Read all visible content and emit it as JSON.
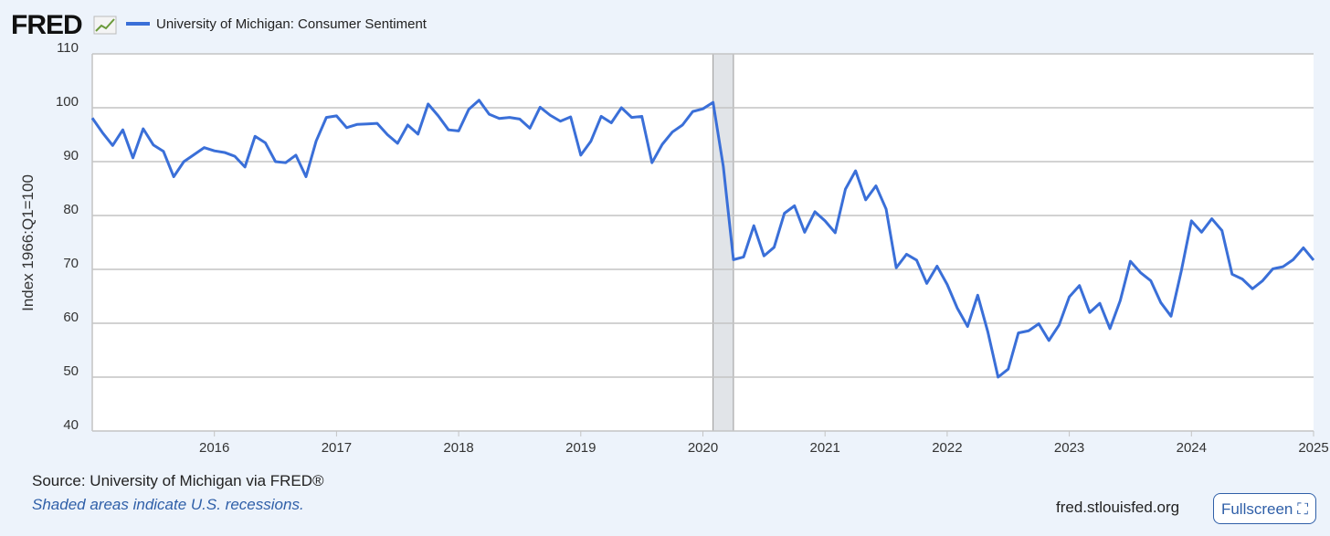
{
  "logo": "FRED",
  "source": "Source: University of Michigan via FRED®",
  "note": "Shaded areas indicate U.S. recessions.",
  "site": "fred.stlouisfed.org",
  "button": "Fullscreen",
  "chart_data": {
    "type": "line",
    "y_label": "Index 1966:Q1=100",
    "x": [
      2015.0,
      2015.083,
      2015.167,
      2015.25,
      2015.333,
      2015.417,
      2015.5,
      2015.583,
      2015.667,
      2015.75,
      2015.833,
      2015.917,
      2016.0,
      2016.083,
      2016.167,
      2016.25,
      2016.333,
      2016.417,
      2016.5,
      2016.583,
      2016.667,
      2016.75,
      2016.833,
      2016.917,
      2017.0,
      2017.083,
      2017.167,
      2017.25,
      2017.333,
      2017.417,
      2017.5,
      2017.583,
      2017.667,
      2017.75,
      2017.833,
      2017.917,
      2018.0,
      2018.083,
      2018.167,
      2018.25,
      2018.333,
      2018.417,
      2018.5,
      2018.583,
      2018.667,
      2018.75,
      2018.833,
      2018.917,
      2019.0,
      2019.083,
      2019.167,
      2019.25,
      2019.333,
      2019.417,
      2019.5,
      2019.583,
      2019.667,
      2019.75,
      2019.833,
      2019.917,
      2020.0,
      2020.083,
      2020.167,
      2020.25,
      2020.333,
      2020.417,
      2020.5,
      2020.583,
      2020.667,
      2020.75,
      2020.833,
      2020.917,
      2021.0,
      2021.083,
      2021.167,
      2021.25,
      2021.333,
      2021.417,
      2021.5,
      2021.583,
      2021.667,
      2021.75,
      2021.833,
      2021.917,
      2022.0,
      2022.083,
      2022.167,
      2022.25,
      2022.333,
      2022.417,
      2022.5,
      2022.583,
      2022.667,
      2022.75,
      2022.833,
      2022.917,
      2023.0,
      2023.083,
      2023.167,
      2023.25,
      2023.333,
      2023.417,
      2023.5,
      2023.583,
      2023.667,
      2023.75,
      2023.833,
      2023.917,
      2024.0,
      2024.083,
      2024.167,
      2024.25,
      2024.333,
      2024.417,
      2024.5,
      2024.583,
      2024.667,
      2024.75,
      2024.833,
      2024.917,
      2025.0
    ],
    "series": [
      {
        "name": "University of Michigan: Consumer Sentiment",
        "color": "#3a6fd8",
        "values": [
          98.1,
          95.4,
          93.0,
          95.9,
          90.7,
          96.1,
          93.1,
          91.9,
          87.2,
          90.0,
          91.3,
          92.6,
          92.0,
          91.7,
          91.0,
          89.0,
          94.7,
          93.5,
          90.0,
          89.8,
          91.2,
          87.2,
          93.8,
          98.2,
          98.5,
          96.3,
          96.9,
          97.0,
          97.1,
          95.0,
          93.4,
          96.8,
          95.1,
          100.7,
          98.5,
          95.9,
          95.7,
          99.7,
          101.4,
          98.8,
          98.0,
          98.2,
          97.9,
          96.2,
          100.1,
          98.6,
          97.5,
          98.3,
          91.2,
          93.8,
          98.4,
          97.2,
          100.0,
          98.2,
          98.4,
          89.8,
          93.2,
          95.5,
          96.8,
          99.3,
          99.8,
          101.0,
          89.1,
          71.8,
          72.3,
          78.1,
          72.5,
          74.1,
          80.4,
          81.8,
          76.9,
          80.7,
          79.0,
          76.8,
          84.9,
          88.3,
          82.9,
          85.5,
          81.2,
          70.3,
          72.8,
          71.7,
          67.4,
          70.6,
          67.2,
          62.8,
          59.4,
          65.2,
          58.4,
          50.0,
          51.5,
          58.2,
          58.6,
          59.9,
          56.8,
          59.7,
          64.9,
          67.0,
          62.0,
          63.7,
          59.0,
          64.2,
          71.5,
          69.4,
          67.9,
          63.8,
          61.3,
          69.7,
          79.0,
          76.9,
          79.4,
          77.2,
          69.1,
          68.2,
          66.4,
          67.9,
          70.1,
          70.5,
          71.8,
          74.0,
          71.7
        ]
      }
    ],
    "recessions": [
      [
        2020.083,
        2020.25
      ]
    ],
    "recession_color": "#e1e4e8",
    "xlim": [
      2015.0,
      2025.0
    ],
    "xticks": [
      2016,
      2017,
      2018,
      2019,
      2020,
      2021,
      2022,
      2023,
      2024,
      2025
    ],
    "ylim": [
      40,
      110
    ],
    "yticks": [
      40,
      50,
      60,
      70,
      80,
      90,
      100,
      110
    ],
    "grid": true
  }
}
